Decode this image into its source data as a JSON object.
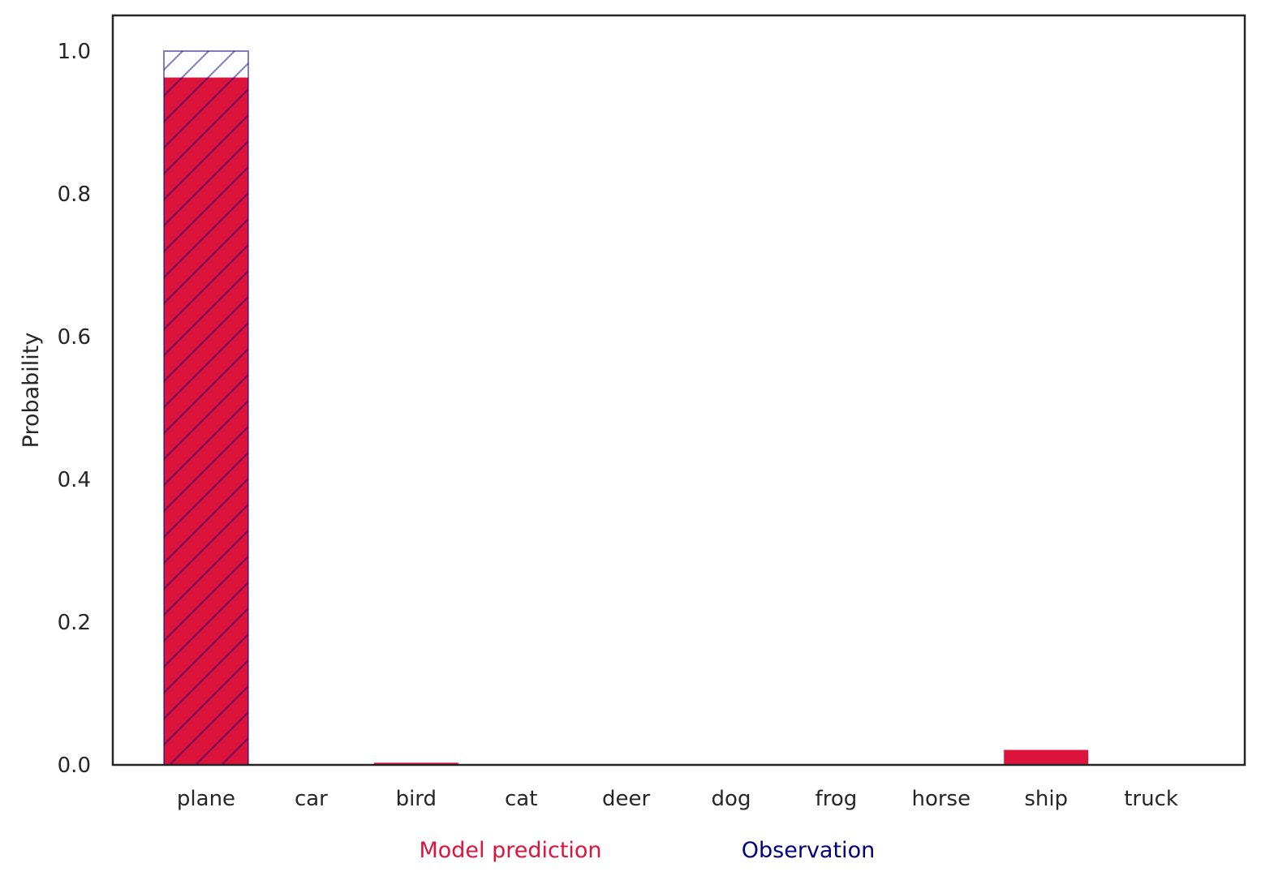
{
  "chart_data": {
    "type": "bar",
    "title": "",
    "xlabel": "",
    "ylabel": "Probability",
    "categories": [
      "plane",
      "car",
      "bird",
      "cat",
      "deer",
      "dog",
      "frog",
      "horse",
      "ship",
      "truck"
    ],
    "series": [
      {
        "name": "Model prediction",
        "color": "#dc143c",
        "style": "filled",
        "values": [
          0.963,
          0.0,
          0.003,
          0.0,
          0.0,
          0.0,
          0.0,
          0.0,
          0.021,
          0.0
        ]
      },
      {
        "name": "Observation",
        "color": "#000080",
        "style": "hatched",
        "values": [
          1.0,
          0.0,
          0.0,
          0.0,
          0.0,
          0.0,
          0.0,
          0.0,
          0.0,
          0.0
        ]
      }
    ],
    "ylim": [
      0,
      1.05
    ],
    "yticks": [
      0.0,
      0.2,
      0.4,
      0.6,
      0.8,
      1.0
    ],
    "ytick_labels": [
      "0.0",
      "0.2",
      "0.4",
      "0.6",
      "0.8",
      "1.0"
    ],
    "grid": false,
    "legend": "bottom-center"
  }
}
